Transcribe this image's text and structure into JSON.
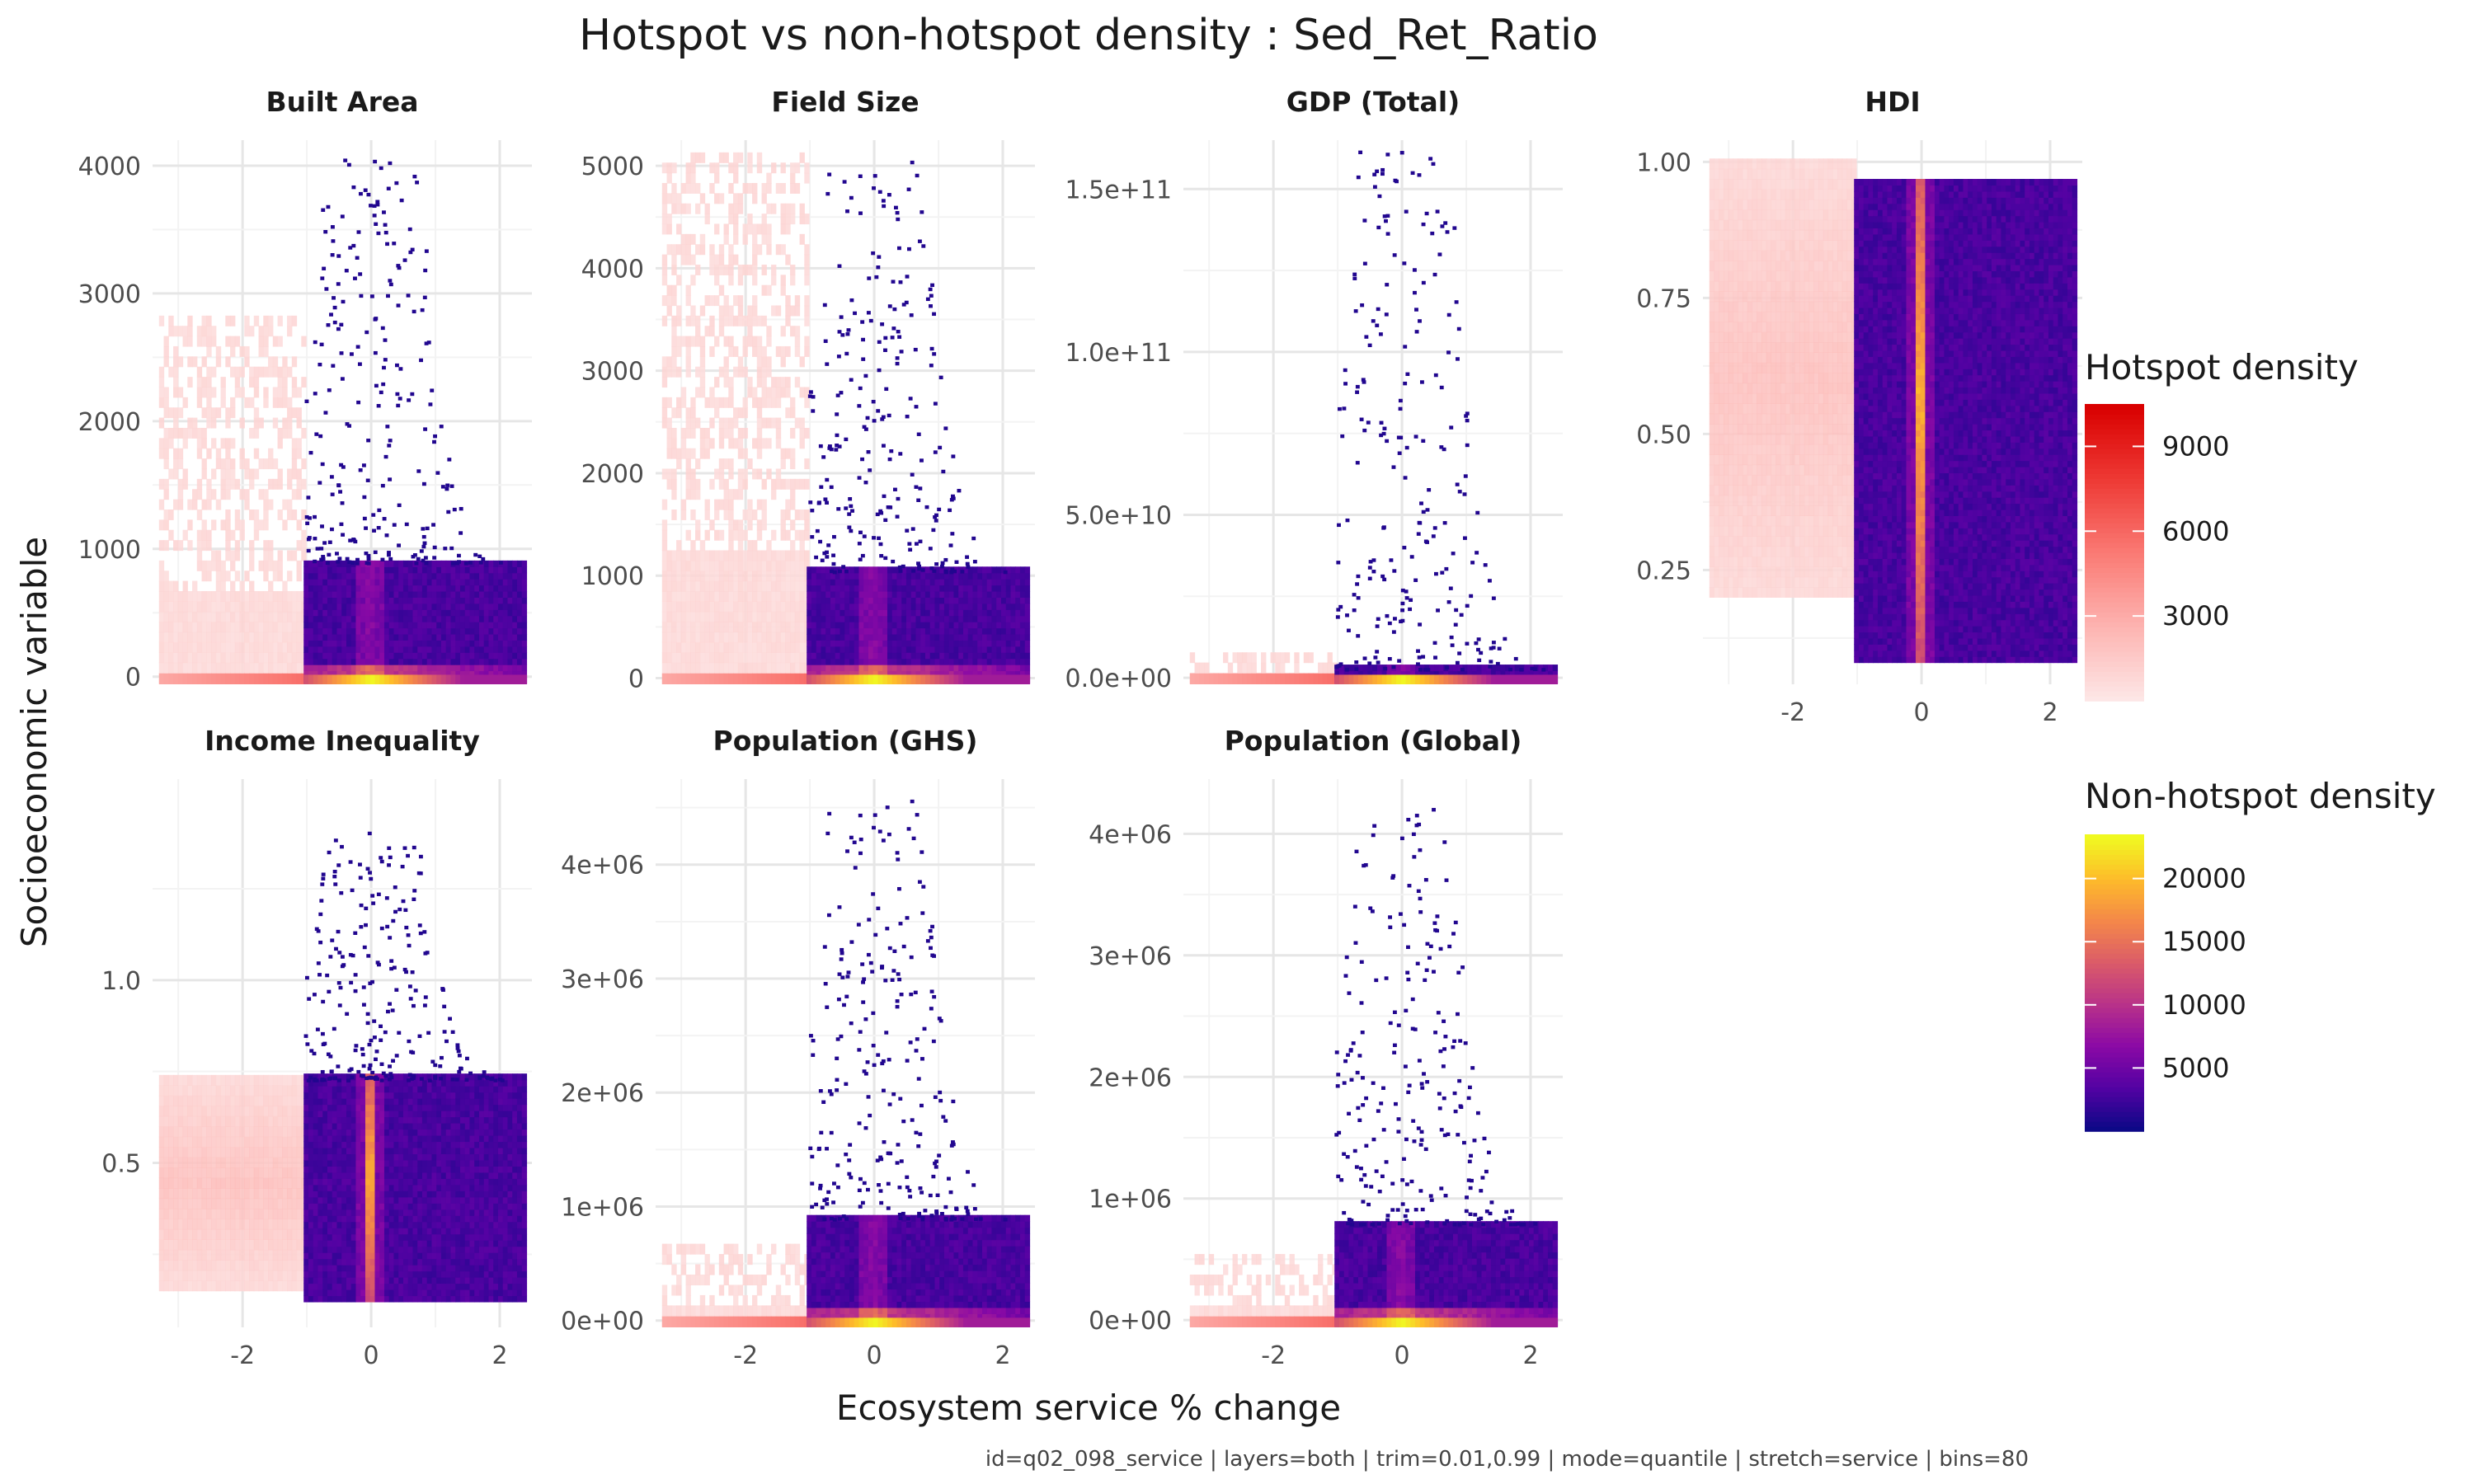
{
  "chart_data": {
    "type": "heatmap",
    "title": "Hotspot vs non-hotspot density : Sed_Ret_Ratio",
    "xlabel": "Ecosystem service % change",
    "ylabel": "Socioeconomic variable",
    "caption": "id=q02_098_service | layers=both | trim=0.01,0.99 | mode=quantile | stretch=service | bins=80",
    "xlim": [
      -3.4,
      2.5
    ],
    "x_ticks": [
      -2,
      0,
      2
    ],
    "x_tick_labels": [
      "-2",
      "0",
      "2"
    ],
    "x_ticks_shown_under": [
      "HDI",
      "Income Inequality",
      "Population (GHS)",
      "Population (Global)"
    ],
    "hotspot_x_range": [
      -3.3,
      -1.05
    ],
    "nonhotspot_x_range": [
      -1.05,
      2.4
    ],
    "grid": true,
    "facets": [
      {
        "name": "Built Area",
        "ylim": [
          -60,
          4200
        ],
        "y_ticks": [
          0,
          1000,
          2000,
          3000,
          4000
        ],
        "y_tick_labels": [
          "0",
          "1000",
          "2000",
          "3000",
          "4000"
        ],
        "hot_ymax": 2800,
        "dense_ymax": 900,
        "scatter_ymax": 4080,
        "peak_x": 0
      },
      {
        "name": "Field Size",
        "ylim": [
          -60,
          5250
        ],
        "y_ticks": [
          0,
          1000,
          2000,
          3000,
          4000,
          5000
        ],
        "y_tick_labels": [
          "0",
          "1000",
          "2000",
          "3000",
          "4000",
          "5000"
        ],
        "hot_ymax": 5080,
        "dense_ymax": 1050,
        "scatter_ymax": 5050,
        "peak_x": 0
      },
      {
        "name": "GDP (Total)",
        "ylim": [
          -2000000000,
          165000000000
        ],
        "y_ticks": [
          0,
          50000000000,
          100000000000,
          150000000000
        ],
        "y_tick_labels": [
          "0.0e+00",
          "5.0e+10",
          "1.0e+11",
          "1.5e+11"
        ],
        "hot_ymax": 7000000000,
        "dense_ymax": 3000000000,
        "scatter_ymax": 162000000000,
        "peak_x": 0
      },
      {
        "name": "HDI",
        "ylim": [
          0.04,
          1.04
        ],
        "y_ticks": [
          0.25,
          0.5,
          0.75,
          1.0
        ],
        "y_tick_labels": [
          "0.25",
          "0.50",
          "0.75",
          "1.00"
        ],
        "hot_ymin": 0.2,
        "hot_ymax": 1.0,
        "dense_ymin": 0.08,
        "dense_ymax": 0.96,
        "peak_x": 0
      },
      {
        "name": "Income Inequality",
        "ylim": [
          0.05,
          1.55
        ],
        "y_ticks": [
          0.5,
          1.0
        ],
        "y_tick_labels": [
          "0.5",
          "1.0"
        ],
        "hot_ymin": 0.15,
        "hot_ymax": 0.72,
        "dense_ymin": 0.12,
        "dense_ymax": 0.73,
        "scatter_ymax": 1.42,
        "peak_x": 0
      },
      {
        "name": "Population (GHS)",
        "ylim": [
          -60000,
          4750000
        ],
        "y_ticks": [
          0,
          1000000,
          2000000,
          3000000,
          4000000
        ],
        "y_tick_labels": [
          "0e+00",
          "1e+06",
          "2e+06",
          "3e+06",
          "4e+06"
        ],
        "hot_ymax": 600000,
        "dense_ymax": 900000,
        "scatter_ymax": 4570000,
        "peak_x": 0
      },
      {
        "name": "Population (Global)",
        "ylim": [
          -60000,
          4450000
        ],
        "y_ticks": [
          0,
          1000000,
          2000000,
          3000000,
          4000000
        ],
        "y_tick_labels": [
          "0e+00",
          "1e+06",
          "2e+06",
          "3e+06",
          "4e+06"
        ],
        "hot_ymax": 500000,
        "dense_ymax": 800000,
        "scatter_ymax": 4250000,
        "peak_x": 0
      }
    ],
    "legend_hotspot": {
      "title": "Hotspot density",
      "breaks": [
        3000,
        6000,
        9000
      ],
      "labels": [
        "3000",
        "6000",
        "9000"
      ],
      "range": [
        0,
        10500
      ],
      "colors": [
        "#fde6e6",
        "#fdb3b0",
        "#fa7a74",
        "#ee3a35",
        "#d90000"
      ]
    },
    "legend_nonhotspot": {
      "title": "Non-hotspot density",
      "breaks": [
        5000,
        10000,
        15000,
        20000
      ],
      "labels": [
        "5000",
        "10000",
        "15000",
        "20000"
      ],
      "range": [
        0,
        23500
      ],
      "colors": [
        "#0d0887",
        "#5402a3",
        "#8b0aa5",
        "#b93289",
        "#db5c68",
        "#f48849",
        "#febc2a",
        "#f0f921"
      ]
    },
    "legend_placement": "right"
  }
}
